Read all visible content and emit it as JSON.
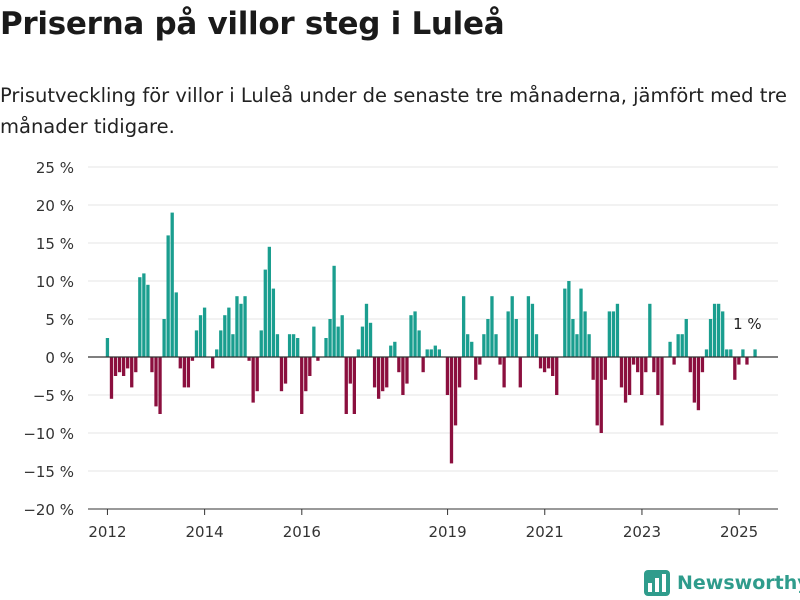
{
  "title": "Priserna på villor steg i Luleå",
  "subtitle": "Prisutveckling för villor i Luleå under de senaste tre månaderna, jämfört med tre månader tidigare.",
  "logo": {
    "icon": "newsworthy-chart-icon",
    "label": "Newsworthy"
  },
  "colors": {
    "positive": "#1a9e8f",
    "negative": "#8b0f3e",
    "grid": "#e6e6e6",
    "axis": "#333333",
    "text": "#333333"
  },
  "chart_data": {
    "type": "bar",
    "ylim": [
      -20,
      25
    ],
    "yticks": [
      -20,
      -15,
      -10,
      -5,
      0,
      5,
      10,
      15,
      20,
      25
    ],
    "ytick_labels": [
      "−20 %",
      "−15 %",
      "−10 %",
      "−5 %",
      "0 %",
      "5 %",
      "10 %",
      "15 %",
      "20 %",
      "25 %"
    ],
    "xlim": [
      2011.6,
      2025.8
    ],
    "xticks": [
      2012,
      2014,
      2016,
      2019,
      2021,
      2023,
      2025
    ],
    "xtick_labels": [
      "2012",
      "2014",
      "2016",
      "2019",
      "2021",
      "2023",
      "2025"
    ],
    "grid": true,
    "bar_width_years": 0.068,
    "x_start": 2012.0,
    "x_step": 0.0833,
    "values": [
      2.5,
      -5.5,
      -2.5,
      -2,
      -2.5,
      -1.5,
      -4,
      -2,
      10.5,
      11,
      9.5,
      -2,
      -6.5,
      -7.5,
      5,
      16,
      19,
      8.5,
      -1.5,
      -4,
      -4,
      -0.5,
      3.5,
      5.5,
      6.5,
      0,
      -1.5,
      1,
      3.5,
      5.5,
      6.5,
      3,
      8,
      7,
      8,
      -0.5,
      -6,
      -4.5,
      3.5,
      11.5,
      14.5,
      9,
      3,
      -4.5,
      -3.5,
      3,
      3,
      2.5,
      -7.5,
      -4.5,
      -2.5,
      4,
      -0.5,
      0,
      2.5,
      5,
      12,
      4,
      5.5,
      -7.5,
      -3.5,
      -7.5,
      1,
      4,
      7,
      4.5,
      -4,
      -5.5,
      -4.5,
      -4,
      1.5,
      2,
      -2,
      -5,
      -3.5,
      5.5,
      6,
      3.5,
      -2,
      1,
      1,
      1.5,
      1,
      0,
      -5,
      -14,
      -9,
      -4,
      8,
      3,
      2,
      -3,
      -1,
      3,
      5,
      8,
      3,
      -1,
      -4,
      6,
      8,
      5,
      -4,
      0,
      8,
      7,
      3,
      -1.5,
      -2,
      -1.5,
      -2.5,
      -5,
      0,
      9,
      10,
      5,
      3,
      9,
      6,
      3,
      -3,
      -9,
      -10,
      -3,
      6,
      6,
      7,
      -4,
      -6,
      -5,
      -1,
      -2,
      -5,
      -2,
      7,
      -2,
      -5,
      -9,
      0,
      2,
      -1,
      3,
      3,
      5,
      -2,
      -6,
      -7,
      -2,
      1,
      5,
      7,
      7,
      6,
      1,
      1,
      -3,
      -1,
      1,
      -1,
      0,
      1
    ],
    "annotation": {
      "text": "1 %",
      "x": 2025.0,
      "y": 4.5
    }
  }
}
